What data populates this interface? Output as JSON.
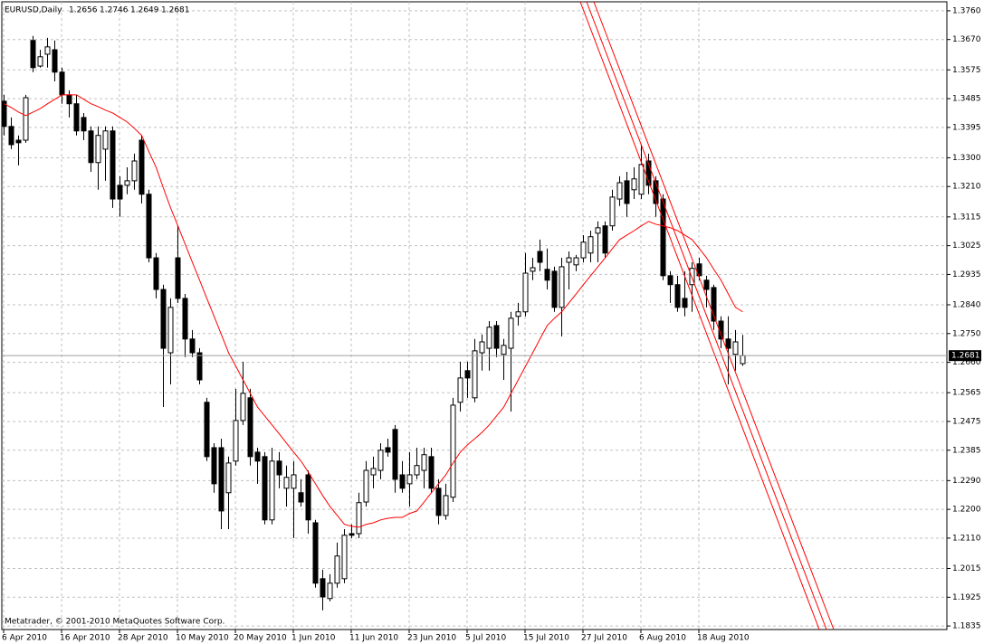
{
  "chart_data": {
    "type": "candlestick",
    "title": "EURUSD,Daily",
    "annotation": "Metatrader, © 2001-2010 MetaQuotes Software Corp.",
    "categories": [
      "6 Apr 2010",
      null,
      null,
      null,
      null,
      null,
      null,
      null,
      "16 Apr 2010",
      null,
      null,
      null,
      null,
      null,
      null,
      null,
      "28 Apr 2010",
      null,
      null,
      null,
      null,
      null,
      null,
      null,
      "10 May 2010",
      null,
      null,
      null,
      null,
      null,
      null,
      null,
      "20 May 2010",
      null,
      null,
      null,
      null,
      null,
      null,
      null,
      "1 Jun 2010",
      null,
      null,
      null,
      null,
      null,
      null,
      null,
      "11 Jun 2010",
      null,
      null,
      null,
      null,
      null,
      null,
      null,
      "23 Jun 2010",
      null,
      null,
      null,
      null,
      null,
      null,
      null,
      "5 Jul 2010",
      null,
      null,
      null,
      null,
      null,
      null,
      null,
      "15 Jul 2010",
      null,
      null,
      null,
      null,
      null,
      null,
      null,
      "27 Jul 2010",
      null,
      null,
      null,
      null,
      null,
      null,
      null,
      "6 Aug 2010",
      null,
      null,
      null,
      null,
      null,
      null,
      null,
      "18 Aug 2010",
      null,
      null,
      null,
      null,
      null,
      null
    ],
    "open": [
      1.3477,
      1.3398,
      1.3355,
      1.3355,
      1.3667,
      1.3587,
      1.3624,
      1.3638,
      1.3568,
      1.3497,
      1.3469,
      1.3426,
      1.3384,
      1.3285,
      1.3327,
      1.3384,
      1.3214,
      1.3214,
      1.3228,
      1.3355,
      1.3186,
      1.2987,
      1.2888,
      1.269,
      1.2987,
      1.286,
      1.2733,
      1.269,
      1.2535,
      1.2393,
      1.2393,
      1.2252,
      1.2351,
      1.2478,
      1.2549,
      1.2379,
      1.2365,
      1.2167,
      1.2351,
      1.2266,
      1.2266,
      1.2252,
      1.2308,
      1.2158,
      1.1983,
      1.1921,
      1.1969,
      1.1983,
      1.2124,
      1.2124,
      1.2223,
      1.2308,
      1.2322,
      1.2393,
      1.245,
      1.2308,
      1.228,
      1.2308,
      1.2322,
      1.2365,
      1.2266,
      1.2181,
      1.2238,
      1.2535,
      1.2634,
      1.2549,
      1.269,
      1.2704,
      1.2775,
      1.2685,
      1.2704,
      1.2804,
      1.2818,
      1.2945,
      1.3007,
      1.2951,
      1.2945,
      1.2832,
      1.2973,
      1.2965,
      1.2987,
      1.3002,
      1.3064,
      1.3087,
      1.3087,
      1.3171,
      1.3228,
      1.32,
      1.3186,
      1.329,
      1.3228,
      1.3171,
      1.2931,
      1.2903,
      1.286,
      1.2903,
      1.2968,
      1.2917,
      1.2894,
      1.2789,
      1.2733,
      1.2685,
      1.2656
    ],
    "high": [
      1.3497,
      1.3426,
      1.337,
      1.3497,
      1.3681,
      1.3638,
      1.3675,
      1.3667,
      1.3582,
      1.3511,
      1.3497,
      1.344,
      1.3398,
      1.3398,
      1.3398,
      1.3398,
      1.3242,
      1.327,
      1.3313,
      1.337,
      1.32,
      1.3002,
      1.2903,
      1.286,
      1.3087,
      1.2874,
      1.2761,
      1.2704,
      1.2549,
      1.2407,
      1.2421,
      1.2365,
      1.2577,
      1.2662,
      1.2577,
      1.2393,
      1.2379,
      1.2393,
      1.2379,
      1.2337,
      1.2351,
      1.2294,
      1.2322,
      1.2167,
      1.2011,
      1.1997,
      1.2096,
      1.2138,
      1.2153,
      1.2252,
      1.2351,
      1.2365,
      1.2407,
      1.2421,
      1.2464,
      1.2351,
      1.2379,
      1.2393,
      1.2393,
      1.2393,
      1.2294,
      1.228,
      1.2549,
      1.2662,
      1.2662,
      1.2733,
      1.2747,
      1.2789,
      1.2789,
      1.2733,
      1.2818,
      1.2846,
      1.3002,
      1.2987,
      1.3044,
      1.3016,
      1.2959,
      1.2987,
      1.3007,
      1.2996,
      1.3058,
      1.3072,
      1.3101,
      1.3101,
      1.32,
      1.3242,
      1.3256,
      1.327,
      1.3341,
      1.3313,
      1.3242,
      1.3186,
      1.2945,
      1.2931,
      1.2945,
      1.2973,
      1.2987,
      1.2931,
      1.2903,
      1.2804,
      1.2804,
      1.2761,
      1.2746
    ],
    "low": [
      1.337,
      1.3327,
      1.3276,
      1.3347,
      1.3568,
      1.3582,
      1.3582,
      1.3539,
      1.3469,
      1.3426,
      1.337,
      1.3355,
      1.3256,
      1.32,
      1.3228,
      1.3143,
      1.3115,
      1.3186,
      1.32,
      1.3157,
      1.2973,
      1.286,
      1.252,
      1.2591,
      1.2846,
      1.2676,
      1.2676,
      1.2591,
      1.2351,
      1.2252,
      1.2138,
      1.2138,
      1.2337,
      1.2464,
      1.2337,
      1.228,
      1.2153,
      1.2153,
      1.2266,
      1.2209,
      1.211,
      1.2209,
      1.2124,
      1.1955,
      1.1884,
      1.1912,
      1.1955,
      1.1969,
      1.211,
      1.211,
      1.2209,
      1.2266,
      1.2294,
      1.2365,
      1.2252,
      1.2252,
      1.2209,
      1.2294,
      1.2266,
      1.2252,
      1.2153,
      1.2167,
      1.2223,
      1.2506,
      1.2549,
      1.2535,
      1.2634,
      1.2634,
      1.2676,
      1.2605,
      1.2506,
      1.2775,
      1.2804,
      1.2917,
      1.2945,
      1.2888,
      1.2818,
      1.2741,
      1.2888,
      1.2945,
      1.2973,
      1.2973,
      1.2973,
      1.2987,
      1.3072,
      1.3149,
      1.3115,
      1.3171,
      1.3171,
      1.3186,
      1.3115,
      1.2917,
      1.2846,
      1.2818,
      1.2804,
      1.2818,
      1.2917,
      1.2832,
      1.2761,
      1.2704,
      1.2591,
      1.2634,
      1.2649
    ],
    "close": [
      1.3398,
      1.3341,
      1.3347,
      1.3488,
      1.3582,
      1.3616,
      1.3647,
      1.3568,
      1.3497,
      1.3469,
      1.3384,
      1.3384,
      1.3285,
      1.337,
      1.3384,
      1.3171,
      1.3171,
      1.3228,
      1.329,
      1.3186,
      1.2987,
      1.2888,
      1.2704,
      1.2832,
      1.286,
      1.2733,
      1.269,
      1.2605,
      1.2365,
      1.228,
      1.2195,
      1.2345,
      1.2478,
      1.2563,
      1.2365,
      1.2351,
      1.2167,
      1.2351,
      1.2308,
      1.23,
      1.2308,
      1.2223,
      1.2167,
      1.1969,
      1.1926,
      1.1969,
      1.2054,
      1.2119,
      1.2119,
      1.2221,
      1.2322,
      1.2328,
      1.2385,
      1.2379,
      1.2294,
      1.2266,
      1.2308,
      1.2337,
      1.2371,
      1.2266,
      1.2181,
      1.2243,
      1.2526,
      1.2611,
      1.2611,
      1.2696,
      1.2724,
      1.277,
      1.2704,
      1.2713,
      1.2798,
      1.2818,
      1.2939,
      1.2956,
      1.2973,
      1.2917,
      1.2832,
      1.2959,
      1.2987,
      1.2987,
      1.3036,
      1.3053,
      1.3081,
      1.3002,
      1.3177,
      1.3222,
      1.3157,
      1.3234,
      1.3279,
      1.3214,
      1.3157,
      1.2931,
      1.2903,
      1.2832,
      1.2832,
      1.2954,
      1.2931,
      1.2888,
      1.2789,
      1.2733,
      1.2704,
      1.2724,
      1.2681
    ],
    "up_color": "#ffffff",
    "down_color": "#000000",
    "indicator": {
      "color": "#ff0000",
      "values": [
        1.3469,
        1.3457,
        1.3443,
        1.3432,
        1.3443,
        1.3454,
        1.3469,
        1.3483,
        1.3497,
        1.3497,
        1.3497,
        1.3483,
        1.3469,
        1.346,
        1.3449,
        1.344,
        1.3426,
        1.3412,
        1.3392,
        1.337,
        1.3319,
        1.327,
        1.3205,
        1.3143,
        1.3087,
        1.303,
        1.2973,
        1.2917,
        1.286,
        1.2804,
        1.2747,
        1.269,
        1.2648,
        1.2605,
        1.2563,
        1.252,
        1.2492,
        1.2464,
        1.2436,
        1.2407,
        1.2379,
        1.2351,
        1.2317,
        1.228,
        1.2243,
        1.2209,
        1.2181,
        1.2153,
        1.2147,
        1.2144,
        1.2153,
        1.2158,
        1.2167,
        1.2172,
        1.2175,
        1.2175,
        1.2187,
        1.2195,
        1.2223,
        1.2252,
        1.228,
        1.2308,
        1.2345,
        1.2379,
        1.2402,
        1.2421,
        1.2441,
        1.2464,
        1.2492,
        1.252,
        1.2563,
        1.2605,
        1.2648,
        1.269,
        1.2733,
        1.2775,
        1.2798,
        1.2818,
        1.2846,
        1.2874,
        1.2903,
        1.2931,
        1.2959,
        1.2987,
        1.3016,
        1.3044,
        1.3058,
        1.3072,
        1.3087,
        1.3101,
        1.3092,
        1.3087,
        1.3081,
        1.3072,
        1.3058,
        1.3044,
        1.3016,
        1.2987,
        1.2951,
        1.2917,
        1.2874,
        1.2832,
        1.2818
      ]
    },
    "ylim": [
      1.1824,
      1.3788
    ],
    "yticks": [
      {
        "value": 1.376,
        "label": "1.3760"
      },
      {
        "value": 1.367,
        "label": "1.3670"
      },
      1.3575,
      1.3485,
      1.3395,
      {
        "value": 1.33,
        "label": "1.3300"
      },
      {
        "value": 1.321,
        "label": "1.3210"
      },
      1.3115,
      1.3025,
      1.2935,
      {
        "value": 1.284,
        "label": "1.2840"
      },
      {
        "value": 1.275,
        "label": "1.2750"
      },
      {
        "value": 1.266,
        "label": "1.2660"
      },
      1.2565,
      1.2475,
      1.2385,
      {
        "value": 1.229,
        "label": "1.2290"
      },
      {
        "value": 1.22,
        "label": "1.2200"
      },
      {
        "value": 1.211,
        "label": "1.2110"
      },
      1.2015,
      1.1925,
      1.1835
    ],
    "grid": true
  }
}
